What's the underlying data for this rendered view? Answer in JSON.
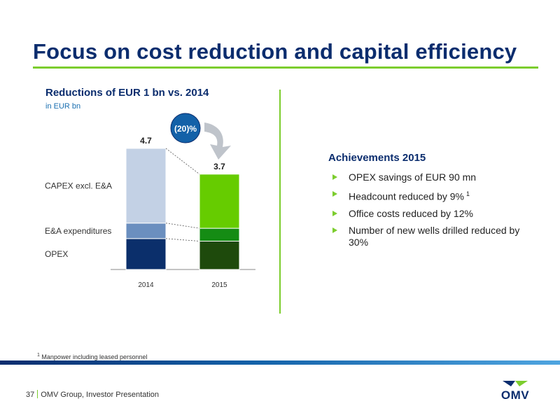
{
  "slide": {
    "title": "Focus on cost reduction and capital efficiency"
  },
  "chart_data": {
    "type": "bar",
    "stacked": true,
    "title": "Reductions of EUR 1 bn vs. 2014",
    "subtitle": "in EUR bn",
    "categories": [
      "2014",
      "2015"
    ],
    "totals": [
      4.7,
      3.7
    ],
    "series": [
      {
        "name": "OPEX",
        "values": [
          1.2,
          1.1
        ],
        "colors": [
          "#0b2f6b",
          "#1e4a0c"
        ]
      },
      {
        "name": "E&A expenditures",
        "values": [
          0.6,
          0.5
        ],
        "colors": [
          "#6b8fbf",
          "#158c14"
        ]
      },
      {
        "name": "CAPEX excl. E&A",
        "values": [
          2.9,
          2.1
        ],
        "colors": [
          "#c3d1e5",
          "#66cc00"
        ]
      }
    ],
    "ylim": [
      0,
      4.7
    ],
    "change_label": "(20)%",
    "grid": false
  },
  "achievements": {
    "title": "Achievements 2015",
    "items": [
      {
        "text": "OPEX savings of EUR 90 mn",
        "sup": ""
      },
      {
        "text": "Headcount reduced by 9%",
        "sup": "1"
      },
      {
        "text": "Office costs reduced by 12%",
        "sup": ""
      },
      {
        "text": "Number of new wells drilled reduced by 30%",
        "sup": ""
      }
    ]
  },
  "footnote": {
    "marker": "1",
    "text": "Manpower including leased personnel"
  },
  "footer": {
    "page_number": "37",
    "text": "OMV Group, Investor Presentation"
  },
  "logo": {
    "text": "OMV"
  },
  "colors": {
    "title": "#0b2d6e",
    "accent_green": "#7ccd2e",
    "badge_blue": "#1361a8"
  }
}
